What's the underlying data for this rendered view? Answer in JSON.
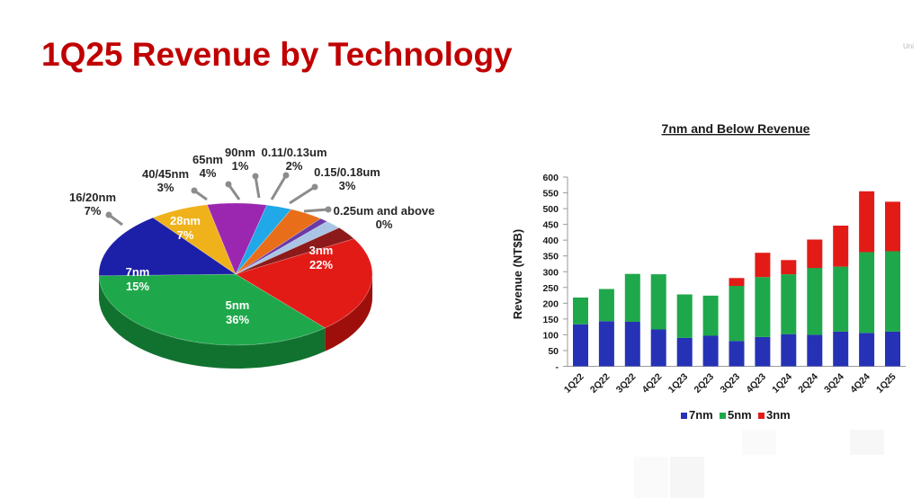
{
  "page": {
    "title": "1Q25 Revenue by Technology",
    "corner_text": "Uni"
  },
  "chart_data": [
    {
      "type": "pie",
      "style": "3d-exploded",
      "slices": [
        {
          "label": "3nm",
          "value": 22,
          "percent_label": "22%",
          "color": "#e31b17",
          "side_color": "#9e0f0c"
        },
        {
          "label": "5nm",
          "value": 36,
          "percent_label": "36%",
          "color": "#1fa84b",
          "side_color": "#117230"
        },
        {
          "label": "7nm",
          "value": 15,
          "percent_label": "15%",
          "color": "#1c1fa8",
          "side_color": "#0f1170"
        },
        {
          "label": "16/20nm",
          "value": 7,
          "percent_label": "7%",
          "color": "#f0b21a",
          "side_color": "#b07e0b"
        },
        {
          "label": "28nm",
          "value": 7,
          "percent_label": "7%",
          "color": "#9b27b0",
          "side_color": "#66157a"
        },
        {
          "label": "40/45nm",
          "value": 3,
          "percent_label": "3%",
          "color": "#20a8e8",
          "side_color": "#1274a6"
        },
        {
          "label": "65nm",
          "value": 4,
          "percent_label": "4%",
          "color": "#e86e1a",
          "side_color": "#a54a0c"
        },
        {
          "label": "90nm",
          "value": 1,
          "percent_label": "1%",
          "color": "#6a3aa6",
          "side_color": "#45226f"
        },
        {
          "label": "0.11/0.13um",
          "value": 2,
          "percent_label": "2%",
          "color": "#a9c4e4",
          "side_color": "#7590b0"
        },
        {
          "label": "0.15/0.18um",
          "value": 3,
          "percent_label": "3%",
          "color": "#8c1a1a",
          "side_color": "#5a0d0d"
        },
        {
          "label": "0.25um and above",
          "value": 0,
          "percent_label": "0%",
          "color": "#b03030",
          "side_color": "#701818"
        }
      ]
    },
    {
      "type": "bar",
      "stacked": true,
      "title": "7nm and Below Revenue",
      "ylabel": "Revenue (NT$B)",
      "ylim": [
        0,
        600
      ],
      "yticks": [
        "-",
        "50",
        "100",
        "150",
        "200",
        "250",
        "300",
        "350",
        "400",
        "450",
        "500",
        "550",
        "600"
      ],
      "categories": [
        "1Q22",
        "2Q22",
        "3Q22",
        "4Q22",
        "1Q23",
        "2Q23",
        "3Q23",
        "4Q23",
        "1Q24",
        "2Q24",
        "3Q24",
        "4Q24",
        "1Q25"
      ],
      "series": [
        {
          "name": "7nm",
          "color": "#2632b5",
          "values": [
            133,
            143,
            141,
            117,
            90,
            97,
            80,
            93,
            102,
            100,
            110,
            106,
            110
          ]
        },
        {
          "name": "5nm",
          "color": "#1fa84b",
          "values": [
            85,
            102,
            152,
            175,
            138,
            127,
            175,
            190,
            190,
            212,
            206,
            256,
            255
          ]
        },
        {
          "name": "3nm",
          "color": "#e31b17",
          "values": [
            0,
            0,
            0,
            0,
            0,
            0,
            25,
            77,
            45,
            90,
            130,
            193,
            157
          ]
        }
      ],
      "legend_position": "bottom"
    }
  ]
}
